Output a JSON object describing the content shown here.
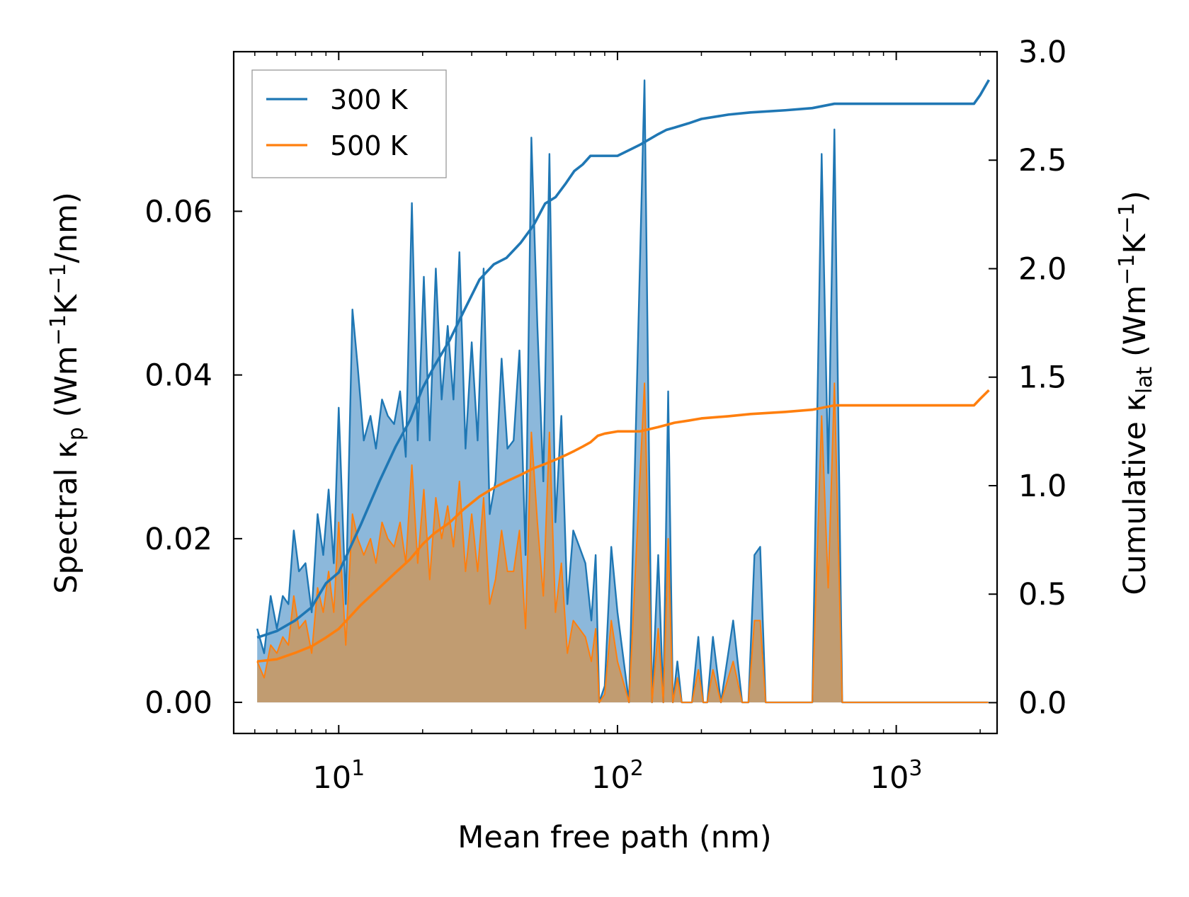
{
  "chart_data": {
    "type": "line",
    "xscale": "log",
    "xlim": [
      4.2,
      2300
    ],
    "ylim_left": [
      -0.0038,
      0.0795
    ],
    "ylim_right": [
      -0.142,
      3.0
    ],
    "xlabel": "Mean free path (nm)",
    "ylabel_left": {
      "main": "Spectral κ",
      "sub": "p",
      "unit_open": " (Wm",
      "e1": "−1",
      "k": "K",
      "e2": "−1",
      "unit_close": "/nm)"
    },
    "ylabel_right": {
      "main": "Cumulative κ",
      "sub": "lat",
      "unit_open": " (Wm",
      "e1": "−1",
      "k": "K",
      "e2": "−1",
      "unit_close": ")"
    },
    "x_ticks": [
      {
        "value": 10,
        "base": "10",
        "exp": "1"
      },
      {
        "value": 100,
        "base": "10",
        "exp": "2"
      },
      {
        "value": 1000,
        "base": "10",
        "exp": "3"
      }
    ],
    "y_ticks_left": [
      {
        "value": 0.0,
        "label": "0.00"
      },
      {
        "value": 0.02,
        "label": "0.02"
      },
      {
        "value": 0.04,
        "label": "0.04"
      },
      {
        "value": 0.06,
        "label": "0.06"
      }
    ],
    "y_ticks_right": [
      {
        "value": 0.0,
        "label": "0.0"
      },
      {
        "value": 0.5,
        "label": "0.5"
      },
      {
        "value": 1.0,
        "label": "1.0"
      },
      {
        "value": 1.5,
        "label": "1.5"
      },
      {
        "value": 2.0,
        "label": "2.0"
      },
      {
        "value": 2.5,
        "label": "2.5"
      },
      {
        "value": 3.0,
        "label": "3.0"
      }
    ],
    "legend": {
      "location": "upper-left",
      "entries": [
        "300 K",
        "500 K"
      ]
    },
    "colors": {
      "300K": "#1f77b4",
      "500K": "#ff7f0e",
      "fill300": "#7fb0d7",
      "fill500": "#c49a6c"
    },
    "series_spectral": [
      {
        "name": "300 K",
        "axis": "left",
        "x": [
          5.1,
          5.4,
          5.7,
          6.0,
          6.3,
          6.6,
          6.9,
          7.2,
          7.6,
          8.0,
          8.4,
          8.8,
          9.2,
          9.6,
          10.0,
          10.6,
          11.2,
          11.7,
          12.3,
          13.0,
          13.6,
          14.3,
          15.0,
          15.8,
          16.6,
          17.4,
          18.3,
          19.2,
          20.2,
          21.2,
          22.3,
          23.4,
          24.6,
          25.8,
          27.1,
          28.5,
          30.0,
          31.5,
          33.1,
          34.8,
          36.5,
          38.4,
          40.3,
          42.4,
          44.5,
          46.8,
          49.1,
          51.6,
          54.2,
          57.0,
          59.9,
          62.9,
          66.1,
          69.4,
          73.0,
          76.7,
          80.6,
          83.5,
          86.0,
          90.0,
          95.0,
          100.0,
          110.0,
          125.0,
          133.0,
          140.0,
          146.0,
          152.0,
          158.0,
          164.0,
          170.0,
          185.0,
          195.0,
          203.0,
          210.0,
          220.0,
          235.0,
          260.0,
          280.0,
          295.0,
          310.0,
          325.0,
          340.0,
          500.0,
          540.0,
          570.0,
          600.0,
          640.0,
          1800.0,
          1880.0,
          1960.0,
          2020.0,
          2080.0,
          2140.0
        ],
        "y": [
          0.009,
          0.006,
          0.013,
          0.009,
          0.013,
          0.012,
          0.021,
          0.016,
          0.017,
          0.011,
          0.023,
          0.018,
          0.026,
          0.017,
          0.036,
          0.012,
          0.048,
          0.041,
          0.032,
          0.035,
          0.031,
          0.037,
          0.035,
          0.034,
          0.038,
          0.03,
          0.061,
          0.032,
          0.052,
          0.032,
          0.053,
          0.037,
          0.046,
          0.037,
          0.055,
          0.031,
          0.044,
          0.032,
          0.053,
          0.023,
          0.027,
          0.042,
          0.031,
          0.032,
          0.043,
          0.018,
          0.069,
          0.046,
          0.027,
          0.067,
          0.022,
          0.035,
          0.012,
          0.021,
          0.019,
          0.017,
          0.01,
          0.018,
          0.0,
          0.002,
          0.019,
          0.011,
          0.0,
          0.076,
          0.0,
          0.018,
          0.0,
          0.038,
          0.0,
          0.005,
          0.0,
          0.0,
          0.008,
          0.0,
          0.0,
          0.008,
          0.0,
          0.01,
          0.0,
          0.0,
          0.018,
          0.019,
          0.0,
          0.0,
          0.067,
          0.028,
          0.07,
          0.0,
          0.0,
          0.0,
          0.0,
          0.0,
          0.0,
          0.0
        ]
      },
      {
        "name": "500 K",
        "axis": "left",
        "x": [
          5.1,
          5.4,
          5.7,
          6.0,
          6.3,
          6.6,
          6.9,
          7.2,
          7.6,
          8.0,
          8.4,
          8.8,
          9.2,
          9.6,
          10.0,
          10.6,
          11.2,
          11.7,
          12.3,
          13.0,
          13.6,
          14.3,
          15.0,
          15.8,
          16.6,
          17.4,
          18.3,
          19.2,
          20.2,
          21.2,
          22.3,
          23.4,
          24.6,
          25.8,
          27.1,
          28.5,
          30.0,
          31.5,
          33.1,
          34.8,
          36.5,
          38.4,
          40.3,
          42.4,
          44.5,
          46.8,
          49.1,
          51.6,
          54.2,
          57.0,
          59.9,
          62.9,
          66.1,
          69.4,
          73.0,
          76.7,
          80.6,
          83.5,
          86.0,
          90.0,
          95.0,
          100.0,
          110.0,
          125.0,
          133.0,
          140.0,
          146.0,
          152.0,
          158.0,
          164.0,
          170.0,
          185.0,
          195.0,
          203.0,
          210.0,
          220.0,
          235.0,
          260.0,
          280.0,
          295.0,
          310.0,
          325.0,
          340.0,
          500.0,
          540.0,
          570.0,
          600.0,
          640.0,
          1800.0,
          1880.0,
          1960.0,
          2020.0,
          2080.0,
          2140.0
        ],
        "y": [
          0.005,
          0.003,
          0.007,
          0.006,
          0.008,
          0.007,
          0.013,
          0.009,
          0.01,
          0.006,
          0.014,
          0.011,
          0.016,
          0.011,
          0.022,
          0.007,
          0.023,
          0.02,
          0.018,
          0.02,
          0.017,
          0.022,
          0.02,
          0.019,
          0.022,
          0.017,
          0.029,
          0.017,
          0.026,
          0.015,
          0.025,
          0.02,
          0.024,
          0.019,
          0.027,
          0.016,
          0.023,
          0.016,
          0.025,
          0.012,
          0.015,
          0.021,
          0.016,
          0.016,
          0.021,
          0.009,
          0.033,
          0.022,
          0.013,
          0.033,
          0.011,
          0.017,
          0.006,
          0.01,
          0.009,
          0.008,
          0.005,
          0.009,
          0.0,
          0.001,
          0.01,
          0.005,
          0.0,
          0.039,
          0.0,
          0.009,
          0.0,
          0.02,
          0.0,
          0.003,
          0.0,
          0.0,
          0.004,
          0.0,
          0.0,
          0.004,
          0.0,
          0.005,
          0.0,
          0.0,
          0.01,
          0.01,
          0.0,
          0.0,
          0.035,
          0.014,
          0.039,
          0.0,
          0.0,
          0.0,
          0.0,
          0.0,
          0.0,
          0.0
        ]
      }
    ],
    "series_cumulative": [
      {
        "name": "300 K",
        "axis": "right",
        "x": [
          5.1,
          6.0,
          7.0,
          8.0,
          9.0,
          10.0,
          12.0,
          14.0,
          16.0,
          18.0,
          20.0,
          22.0,
          25.0,
          28.0,
          32.0,
          36.0,
          40.0,
          45.0,
          50.0,
          55.0,
          60.0,
          65.0,
          70.0,
          75.0,
          80.0,
          85.0,
          90.0,
          100.0,
          120.0,
          140.0,
          150.0,
          160.0,
          180.0,
          200.0,
          250.0,
          300.0,
          400.0,
          500.0,
          600.0,
          800.0,
          1000.0,
          1500.0,
          1900.0,
          2000.0,
          2150.0
        ],
        "y": [
          0.3,
          0.33,
          0.38,
          0.44,
          0.55,
          0.6,
          0.82,
          1.02,
          1.18,
          1.3,
          1.45,
          1.55,
          1.67,
          1.8,
          1.95,
          2.02,
          2.05,
          2.12,
          2.2,
          2.3,
          2.33,
          2.39,
          2.45,
          2.48,
          2.52,
          2.52,
          2.52,
          2.52,
          2.57,
          2.62,
          2.64,
          2.65,
          2.67,
          2.69,
          2.71,
          2.72,
          2.73,
          2.74,
          2.76,
          2.76,
          2.76,
          2.76,
          2.76,
          2.8,
          2.87
        ]
      },
      {
        "name": "500 K",
        "axis": "right",
        "x": [
          5.1,
          6.0,
          7.0,
          8.0,
          9.0,
          10.0,
          12.0,
          14.0,
          16.0,
          18.0,
          20.0,
          22.0,
          25.0,
          28.0,
          32.0,
          36.0,
          40.0,
          45.0,
          50.0,
          55.0,
          60.0,
          65.0,
          70.0,
          75.0,
          80.0,
          85.0,
          90.0,
          100.0,
          120.0,
          140.0,
          150.0,
          160.0,
          180.0,
          200.0,
          250.0,
          300.0,
          400.0,
          500.0,
          600.0,
          800.0,
          1000.0,
          1500.0,
          1900.0,
          2000.0,
          2150.0
        ],
        "y": [
          0.19,
          0.2,
          0.23,
          0.26,
          0.3,
          0.34,
          0.45,
          0.53,
          0.6,
          0.66,
          0.73,
          0.78,
          0.83,
          0.89,
          0.95,
          0.99,
          1.02,
          1.05,
          1.08,
          1.1,
          1.12,
          1.14,
          1.16,
          1.18,
          1.2,
          1.23,
          1.24,
          1.25,
          1.25,
          1.27,
          1.28,
          1.29,
          1.3,
          1.31,
          1.32,
          1.33,
          1.34,
          1.35,
          1.37,
          1.37,
          1.37,
          1.37,
          1.37,
          1.4,
          1.44
        ]
      }
    ]
  }
}
